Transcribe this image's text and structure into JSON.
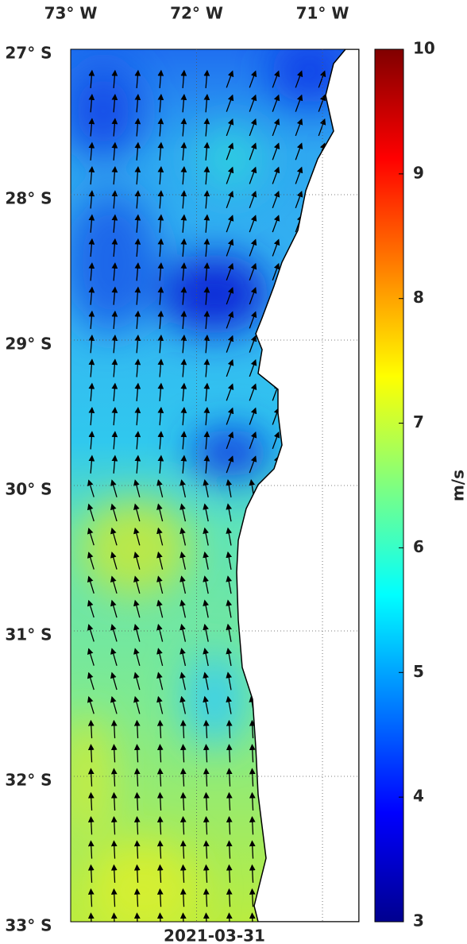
{
  "map": {
    "type": "map",
    "date": "2021-03-31",
    "xlim": [
      -73,
      -70.71
    ],
    "ylim": [
      -33,
      -27
    ],
    "xticks": [
      {
        "value": -73,
        "label": "73° W"
      },
      {
        "value": -72,
        "label": "72° W"
      },
      {
        "value": -71,
        "label": "71° W"
      }
    ],
    "yticks": [
      {
        "value": -27,
        "label": "27° S"
      },
      {
        "value": -28,
        "label": "28° S"
      },
      {
        "value": -29,
        "label": "29° S"
      },
      {
        "value": -30,
        "label": "30° S"
      },
      {
        "value": -31,
        "label": "31° S"
      },
      {
        "value": -32,
        "label": "32° S"
      },
      {
        "value": -33,
        "label": "33° S"
      }
    ],
    "grid": true,
    "colorbar": {
      "label": "m/s",
      "lim": [
        3,
        10
      ],
      "ticks": [
        3,
        4,
        5,
        6,
        7,
        8,
        9,
        10
      ]
    }
  }
}
